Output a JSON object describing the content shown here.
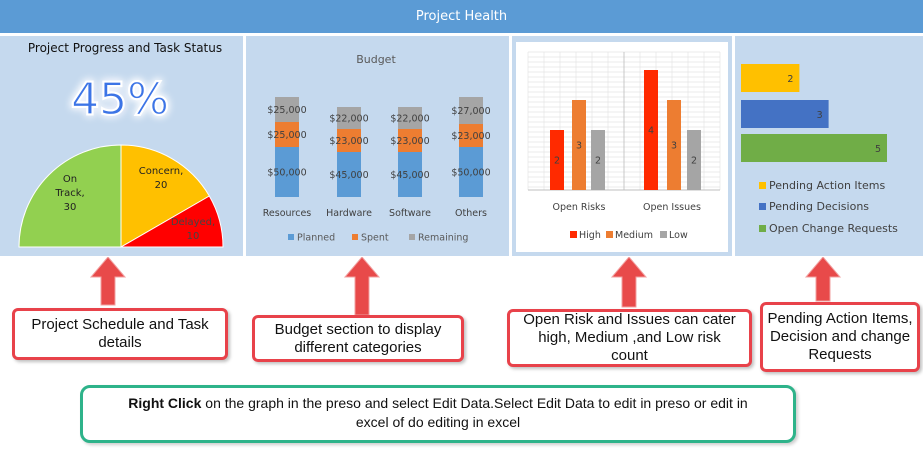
{
  "header": {
    "title": "Project Health"
  },
  "progress": {
    "title": "Project Progress and Task Status",
    "percent": "45%",
    "labels": {
      "on_track": "On Track, 30",
      "concern": "Concern, 20",
      "delayed": "Delayed, 10"
    },
    "colors": {
      "on_track": "#92d050",
      "concern": "#ffc000",
      "delayed": "#ff0000"
    }
  },
  "budget": {
    "title": "Budget"
  },
  "risks": {},
  "pending": {},
  "callouts": {
    "schedule": "Project Schedule and Task details",
    "budget": "Budget section to display different categories",
    "risks": "Open Risk and Issues can cater high, Medium ,and Low risk count",
    "pending": "Pending Action Items, Decision and change Requests"
  },
  "note": {
    "bold": "Right Click",
    "text": " on the graph in the preso and select Edit Data.Select Edit Data to edit in preso or edit in excel of do editing in excel"
  },
  "chart_data": [
    {
      "type": "pie",
      "title": "Project Progress and Task Status",
      "shape": "half-donut",
      "categories": [
        "On Track",
        "Concern",
        "Delayed"
      ],
      "values": [
        30,
        20,
        10
      ],
      "colors": [
        "#92d050",
        "#ffc000",
        "#ff0000"
      ]
    },
    {
      "type": "bar",
      "stacked": true,
      "title": "Budget",
      "categories": [
        "Resources",
        "Hardware",
        "Software",
        "Others"
      ],
      "series": [
        {
          "name": "Planned",
          "values": [
            50000,
            45000,
            45000,
            50000
          ],
          "labels": [
            "$50,000",
            "$45,000",
            "$45,000",
            "$50,000"
          ],
          "color": "#5b9bd5"
        },
        {
          "name": "Spent",
          "values": [
            25000,
            23000,
            23000,
            23000
          ],
          "labels": [
            "$25,000",
            "$23,000",
            "$23,000",
            "$23,000"
          ],
          "color": "#ed7d31"
        },
        {
          "name": "Remaining",
          "values": [
            25000,
            22000,
            22000,
            27000
          ],
          "labels": [
            "$25,000",
            "$22,000",
            "$22,000",
            "$27,000"
          ],
          "color": "#a5a5a5"
        }
      ],
      "legend": "bottom"
    },
    {
      "type": "bar",
      "categories": [
        "Open Risks",
        "Open Issues"
      ],
      "series": [
        {
          "name": "High",
          "values": [
            2,
            4
          ],
          "color": "#ff2a00"
        },
        {
          "name": "Medium",
          "values": [
            3,
            3
          ],
          "color": "#ed7d31"
        },
        {
          "name": "Low",
          "values": [
            2,
            2
          ],
          "color": "#a5a5a5"
        }
      ],
      "ylim": [
        0,
        5
      ],
      "grid": true,
      "legend": "bottom"
    },
    {
      "type": "bar",
      "orientation": "horizontal",
      "categories": [
        "Pending Action Items",
        "Pending Decisions",
        "Open Change Requests"
      ],
      "values": [
        2,
        3,
        5
      ],
      "colors": [
        "#ffc000",
        "#4472c4",
        "#70ad47"
      ],
      "legend": "bottom"
    }
  ]
}
